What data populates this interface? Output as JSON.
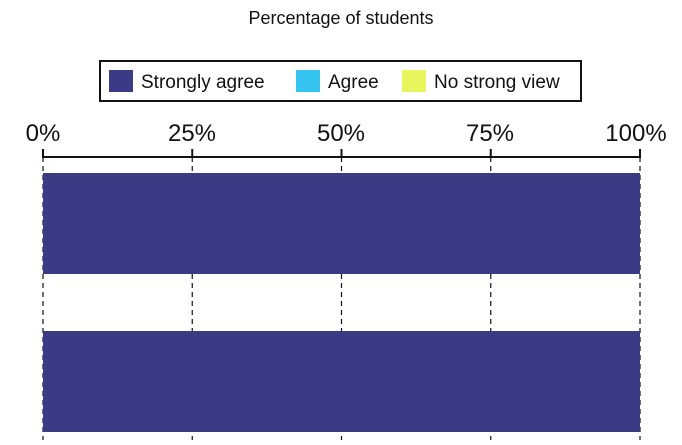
{
  "chart_data": {
    "type": "bar",
    "orientation": "horizontal",
    "stacked": true,
    "title": "Percentage of students",
    "categories": [
      "",
      ""
    ],
    "series": [
      {
        "name": "Strongly agree",
        "values": [
          100,
          100
        ],
        "color": "#3a3a85"
      },
      {
        "name": "Agree",
        "values": [
          0,
          0
        ],
        "color": "#35c3f0"
      },
      {
        "name": "No strong view",
        "values": [
          0,
          0
        ],
        "color": "#e8f55c"
      }
    ],
    "x_ticks": [
      "0%",
      "25%",
      "50%",
      "75%",
      "100%"
    ],
    "x_tick_values": [
      0,
      25,
      50,
      75,
      100
    ],
    "xlim": [
      0,
      100
    ],
    "x_axis_position": "top",
    "grid": "vertical dashed",
    "legend_position": "top-center"
  }
}
